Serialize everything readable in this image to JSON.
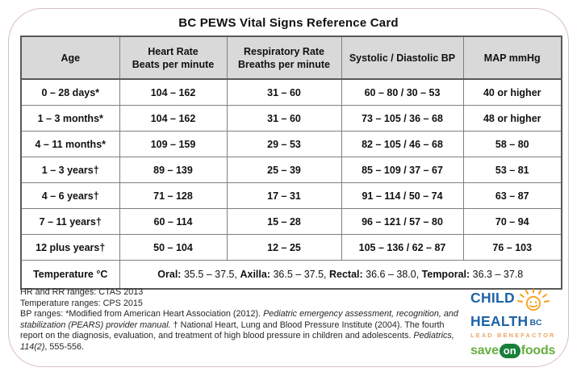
{
  "title": "BC PEWS Vital Signs Reference Card",
  "table": {
    "headers": [
      "Age",
      "Heart Rate\nBeats per minute",
      "Respiratory Rate\nBreaths per minute",
      "Systolic / Diastolic BP",
      "MAP mmHg"
    ],
    "rows": [
      [
        "0 – 28 days*",
        "104 – 162",
        "31 – 60",
        "60 – 80 / 30 – 53",
        "40 or higher"
      ],
      [
        "1 – 3 months*",
        "104 – 162",
        "31 – 60",
        "73 – 105 / 36 – 68",
        "48 or higher"
      ],
      [
        "4 – 11 months*",
        "109 – 159",
        "29 – 53",
        "82 – 105 / 46 – 68",
        "58 – 80"
      ],
      [
        "1 – 3 years†",
        "89 – 139",
        "25 – 39",
        "85 – 109 / 37 – 67",
        "53 – 81"
      ],
      [
        "4 – 6 years†",
        "71 – 128",
        "17 – 31",
        "91 – 114 / 50 – 74",
        "63 – 87"
      ],
      [
        "7 – 11 years†",
        "60 – 114",
        "15 – 28",
        "96 – 121 / 57 – 80",
        "70 – 94"
      ],
      [
        "12 plus years†",
        "50 – 104",
        "12 – 25",
        "105 – 136 / 62 – 87",
        "76 – 103"
      ]
    ],
    "temperature": {
      "label": "Temperature °C",
      "segments": [
        {
          "text": "Oral: ",
          "bold": true
        },
        {
          "text": "35.5 – 37.5, "
        },
        {
          "text": "Axilla: ",
          "bold": true
        },
        {
          "text": "36.5 – 37.5, "
        },
        {
          "text": "Rectal: ",
          "bold": true
        },
        {
          "text": "36.6 – 38.0, "
        },
        {
          "text": "Temporal: ",
          "bold": true
        },
        {
          "text": "36.3 – 37.8"
        }
      ]
    }
  },
  "footer": {
    "line1": "HR and RR ranges: CTAS 2013",
    "line2": "Temperature ranges: CPS 2015",
    "bp_paragraph": [
      {
        "text": "BP ranges: *Modified from American Heart Association (2012). "
      },
      {
        "text": "Pediatric emergency assessment, recognition, and stabilization (PEARS) provider manual.",
        "italic": true
      },
      {
        "text": " † National Heart, Lung and Blood Pressure Institute (2004). The fourth report on the diagnosis, evaluation, and treatment of high blood pressure in children and adolescents. "
      },
      {
        "text": "Pediatrics, 114(2)",
        "italic": true
      },
      {
        "text": ", 555-556."
      }
    ]
  },
  "logo": {
    "child": "CHILD",
    "health": "HEALTH",
    "bc": "BC",
    "benefactor": "LEAD BENEFACTOR",
    "save": "save",
    "on": "on",
    "foods": "foods",
    "icons": {
      "sun": "sun-smiley-icon"
    }
  },
  "colors": {
    "card_border": "#d9bdc6",
    "header_bg": "#d9d9d9",
    "table_border": "#7f7f7f",
    "logo_blue": "#1e63a8",
    "sun_orange": "#f6a01a",
    "benefactor_orange": "#eaa768",
    "save_green": "#66ad3f",
    "on_dark_green": "#187f3b"
  }
}
